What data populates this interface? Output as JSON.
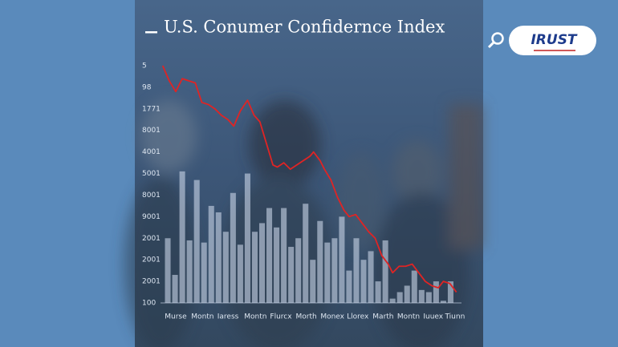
{
  "chart_data": {
    "type": "bar-line",
    "title": "U.S. Conumer Confidernce Index",
    "brand": "IRUST",
    "ylim": [
      0,
      11
    ],
    "yticks": [
      {
        "value": 11,
        "label": "5"
      },
      {
        "value": 10,
        "label": "98"
      },
      {
        "value": 9,
        "label": "1771"
      },
      {
        "value": 8,
        "label": "8001"
      },
      {
        "value": 7,
        "label": "4001"
      },
      {
        "value": 6,
        "label": "5001"
      },
      {
        "value": 5,
        "label": "8001"
      },
      {
        "value": 4,
        "label": "9001"
      },
      {
        "value": 3,
        "label": "2001"
      },
      {
        "value": 2,
        "label": "2001"
      },
      {
        "value": 1,
        "label": "2001"
      },
      {
        "value": 0,
        "label": "100"
      }
    ],
    "xlim": [
      0,
      41.5
    ],
    "xticks": [
      {
        "value": 2.1,
        "label": "Murse"
      },
      {
        "value": 5.8,
        "label": "Montn"
      },
      {
        "value": 9.3,
        "label": "Iaress"
      },
      {
        "value": 13.1,
        "label": "Montn"
      },
      {
        "value": 16.6,
        "label": "Flurcx"
      },
      {
        "value": 20.1,
        "label": "Morth"
      },
      {
        "value": 23.7,
        "label": "Monex"
      },
      {
        "value": 27.2,
        "label": "Llorex"
      },
      {
        "value": 30.7,
        "label": "Marth"
      },
      {
        "value": 34.2,
        "label": "Montn"
      },
      {
        "value": 37.6,
        "label": "Iuuex"
      },
      {
        "value": 40.6,
        "label": "Tiunn"
      }
    ],
    "bars": {
      "color": "#c9d6e8",
      "x": [
        1,
        2,
        3,
        4,
        5,
        6,
        7,
        8,
        9,
        10,
        11,
        12,
        13,
        14,
        15,
        16,
        17,
        18,
        19,
        20,
        21,
        22,
        23,
        24,
        25,
        26,
        27,
        28,
        29,
        30,
        31,
        32,
        33,
        34,
        35,
        36,
        37,
        38,
        39,
        40
      ],
      "values": [
        3.0,
        1.3,
        6.1,
        2.9,
        5.7,
        2.8,
        4.5,
        4.2,
        3.3,
        5.1,
        2.7,
        6.0,
        3.3,
        3.7,
        4.4,
        3.5,
        4.4,
        2.6,
        3.0,
        4.6,
        2.0,
        3.8,
        2.8,
        3.0,
        4.0,
        1.5,
        3.0,
        2.0,
        2.4,
        1.0,
        2.9,
        0.2,
        0.5,
        0.8,
        1.5,
        0.6,
        0.5,
        1.0,
        0.1,
        1.0
      ]
    },
    "line": {
      "color": "#e02424",
      "x": [
        0.3,
        1.2,
        2.1,
        3.0,
        3.9,
        4.8,
        5.7,
        6.6,
        7.5,
        8.4,
        9.3,
        10.1,
        11.0,
        12.0,
        12.9,
        13.7,
        14.6,
        15.5,
        16.1,
        17.0,
        17.9,
        18.8,
        19.7,
        20.6,
        21.1,
        22.0,
        22.6,
        23.5,
        24.4,
        25.3,
        26.0,
        26.9,
        27.8,
        28.7,
        29.6,
        30.5,
        31.4,
        32.0,
        32.9,
        33.8,
        34.7,
        35.6,
        36.5,
        37.4,
        38.3,
        39.0,
        39.9,
        40.8
      ],
      "values": [
        11.0,
        10.3,
        9.8,
        10.4,
        10.3,
        10.2,
        9.3,
        9.2,
        9.0,
        8.7,
        8.5,
        8.2,
        8.9,
        9.4,
        8.7,
        8.4,
        7.4,
        6.4,
        6.3,
        6.5,
        6.2,
        6.4,
        6.6,
        6.8,
        7.0,
        6.6,
        6.2,
        5.7,
        4.9,
        4.3,
        4.0,
        4.1,
        3.7,
        3.3,
        3.0,
        2.2,
        1.8,
        1.4,
        1.7,
        1.7,
        1.8,
        1.4,
        1.0,
        0.8,
        0.7,
        1.0,
        0.9,
        0.5
      ]
    }
  }
}
